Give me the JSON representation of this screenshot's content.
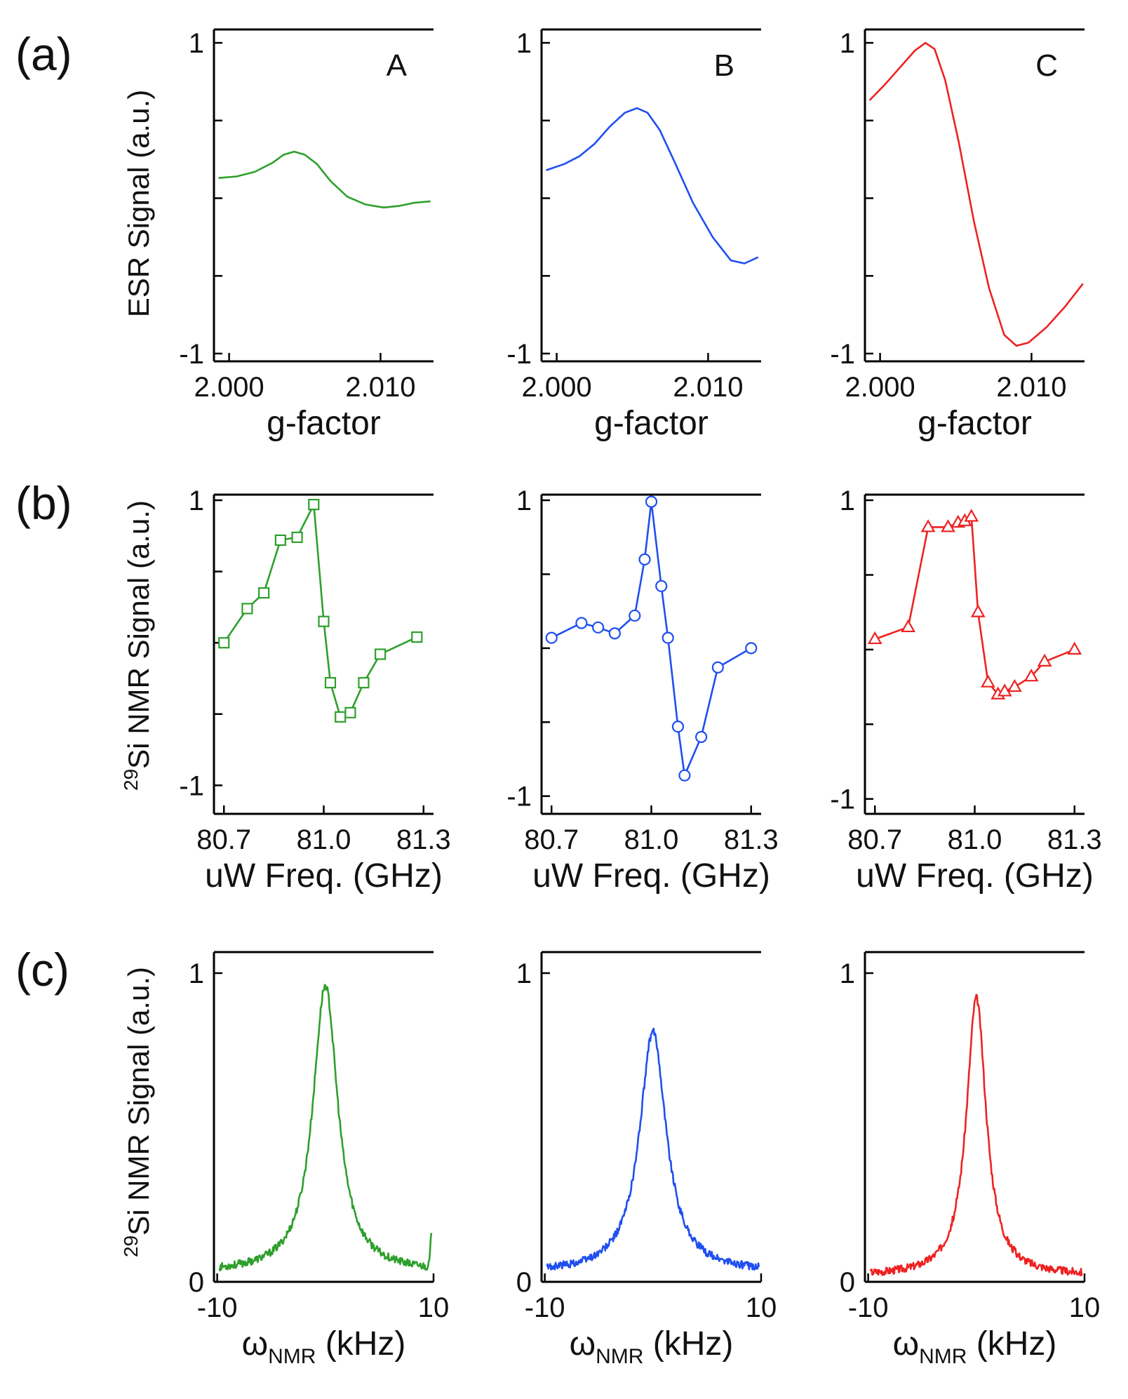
{
  "figure": {
    "row_labels": [
      "(a)",
      "(b)",
      "(c)"
    ],
    "ylabels": [
      {
        "text": "ESR Signal (a.u.)"
      },
      {
        "sup": "29",
        "text": "Si NMR Signal (a.u.)"
      },
      {
        "sup": "29",
        "text": "Si NMR Signal (a.u.)"
      }
    ]
  },
  "colors": {
    "A": "#2ea02c",
    "B": "#1f4ff0",
    "C": "#ee2222"
  },
  "chart_data": [
    {
      "type": "line",
      "row": 0,
      "col": 0,
      "panel_label": "A",
      "color_key": "A",
      "xlabel": "g-factor",
      "ylabel": "ESR Signal (a.u.)",
      "xlim": [
        1.999,
        2.0135
      ],
      "ylim": [
        -1.05,
        1.05
      ],
      "xticks": [
        2.0,
        2.01
      ],
      "xtick_labels": [
        "2.000",
        "2.010"
      ],
      "yticks": [
        -1,
        -0.5,
        0,
        0.5,
        1
      ],
      "ytick_labels": [
        "-1",
        "",
        "",
        "",
        "1"
      ],
      "x": [
        1.9993,
        2.0005,
        2.0017,
        2.0029,
        2.0036,
        2.0043,
        2.005,
        2.0058,
        2.0067,
        2.0078,
        2.009,
        2.0102,
        2.0112,
        2.0122,
        2.0133
      ],
      "y": [
        0.13,
        0.14,
        0.17,
        0.23,
        0.28,
        0.3,
        0.28,
        0.22,
        0.11,
        0.01,
        -0.04,
        -0.06,
        -0.05,
        -0.03,
        -0.02
      ]
    },
    {
      "type": "line",
      "row": 0,
      "col": 1,
      "panel_label": "B",
      "color_key": "B",
      "xlabel": "g-factor",
      "ylabel": "",
      "xlim": [
        1.999,
        2.0135
      ],
      "ylim": [
        -1.05,
        1.05
      ],
      "xticks": [
        2.0,
        2.01
      ],
      "xtick_labels": [
        "2.000",
        "2.010"
      ],
      "yticks": [
        -1,
        -0.5,
        0,
        0.5,
        1
      ],
      "ytick_labels": [
        "-1",
        "",
        "",
        "",
        "1"
      ],
      "x": [
        1.9993,
        2.0005,
        2.0015,
        2.0025,
        2.0035,
        2.0045,
        2.0053,
        2.006,
        2.0068,
        2.0078,
        2.009,
        2.0103,
        2.0115,
        2.0124,
        2.0133
      ],
      "y": [
        0.18,
        0.22,
        0.27,
        0.35,
        0.46,
        0.55,
        0.58,
        0.55,
        0.44,
        0.23,
        -0.03,
        -0.25,
        -0.4,
        -0.42,
        -0.38
      ]
    },
    {
      "type": "line",
      "row": 0,
      "col": 2,
      "panel_label": "C",
      "color_key": "C",
      "xlabel": "g-factor",
      "ylabel": "",
      "xlim": [
        1.999,
        2.0135
      ],
      "ylim": [
        -1.05,
        1.05
      ],
      "xticks": [
        2.0,
        2.01
      ],
      "xtick_labels": [
        "2.000",
        "2.010"
      ],
      "yticks": [
        -1,
        -0.5,
        0,
        0.5,
        1
      ],
      "ytick_labels": [
        "-1",
        "",
        "",
        "",
        "1"
      ],
      "x": [
        1.9993,
        2.0003,
        2.0013,
        2.0023,
        2.003,
        2.0036,
        2.0043,
        2.0052,
        2.0062,
        2.0072,
        2.0082,
        2.009,
        2.0098,
        2.011,
        2.0122,
        2.0134
      ],
      "y": [
        0.63,
        0.73,
        0.84,
        0.95,
        1.0,
        0.96,
        0.76,
        0.36,
        -0.15,
        -0.58,
        -0.88,
        -0.95,
        -0.93,
        -0.83,
        -0.7,
        -0.55
      ]
    },
    {
      "type": "line-markers",
      "row": 1,
      "col": 0,
      "marker": "square",
      "color_key": "A",
      "xlabel": "uW Freq. (GHz)",
      "ylabel": "29Si NMR Signal (a.u.)",
      "xlim": [
        80.67,
        81.33
      ],
      "ylim": [
        -1.2,
        1.0
      ],
      "xticks": [
        80.7,
        81.0,
        81.3
      ],
      "xtick_labels": [
        "80.7",
        "81.0",
        "81.3"
      ],
      "yticks": [
        -1,
        -0.5,
        0,
        0.5,
        1
      ],
      "ytick_labels": [
        "-1",
        "",
        "",
        "",
        "1"
      ],
      "x": [
        80.7,
        80.77,
        80.82,
        80.87,
        80.92,
        80.97,
        81.0,
        81.02,
        81.05,
        81.08,
        81.12,
        81.17,
        81.28
      ],
      "y": [
        0.0,
        0.24,
        0.35,
        0.72,
        0.74,
        0.97,
        0.15,
        -0.28,
        -0.52,
        -0.49,
        -0.28,
        -0.08,
        0.04
      ]
    },
    {
      "type": "line-markers",
      "row": 1,
      "col": 1,
      "marker": "circle",
      "color_key": "B",
      "xlabel": "uW Freq. (GHz)",
      "ylabel": "",
      "xlim": [
        80.67,
        81.33
      ],
      "ylim": [
        -1.12,
        1.0
      ],
      "xticks": [
        80.7,
        81.0,
        81.3
      ],
      "xtick_labels": [
        "80.7",
        "81.0",
        "81.3"
      ],
      "yticks": [
        -1,
        -0.5,
        0,
        0.5,
        1
      ],
      "ytick_labels": [
        "-1",
        "",
        "",
        "",
        "1"
      ],
      "x": [
        80.7,
        80.79,
        80.84,
        80.89,
        80.95,
        80.98,
        81.0,
        81.03,
        81.05,
        81.08,
        81.1,
        81.15,
        81.2,
        81.3
      ],
      "y": [
        0.07,
        0.17,
        0.14,
        0.1,
        0.22,
        0.6,
        0.99,
        0.42,
        0.07,
        -0.53,
        -0.86,
        -0.6,
        -0.13,
        0.0
      ]
    },
    {
      "type": "line-markers",
      "row": 1,
      "col": 2,
      "marker": "triangle",
      "color_key": "C",
      "xlabel": "uW Freq. (GHz)",
      "ylabel": "",
      "xlim": [
        80.67,
        81.33
      ],
      "ylim": [
        -1.1,
        1.0
      ],
      "xticks": [
        80.7,
        81.0,
        81.3
      ],
      "xtick_labels": [
        "80.7",
        "81.0",
        "81.3"
      ],
      "yticks": [
        -1,
        -0.5,
        0,
        0.5,
        1
      ],
      "ytick_labels": [
        "-1",
        "",
        "",
        "",
        "1"
      ],
      "x": [
        80.7,
        80.8,
        80.86,
        80.92,
        80.95,
        80.97,
        80.99,
        81.01,
        81.04,
        81.07,
        81.09,
        81.12,
        81.17,
        81.21,
        81.3
      ],
      "y": [
        0.07,
        0.15,
        0.82,
        0.82,
        0.85,
        0.86,
        0.89,
        0.25,
        -0.22,
        -0.3,
        -0.28,
        -0.25,
        -0.18,
        -0.08,
        0.0
      ]
    },
    {
      "type": "line",
      "row": 2,
      "col": 0,
      "color_key": "A",
      "xlabel": "ω_NMR (kHz)",
      "ylabel": "29Si NMR Signal (a.u.)",
      "xlim": [
        -10.3,
        10.0
      ],
      "ylim": [
        0,
        1.05
      ],
      "xticks": [
        -10,
        10
      ],
      "xtick_labels": [
        "-10",
        "10"
      ],
      "yticks": [
        0,
        1
      ],
      "ytick_labels": [
        "0",
        "1"
      ],
      "peak_center": 0.0,
      "peak_height": 0.96,
      "peak_halfwidth": 1.4,
      "baseline": 0.03,
      "edge_spike": [
        9.8,
        0.1
      ]
    },
    {
      "type": "line",
      "row": 2,
      "col": 1,
      "color_key": "B",
      "xlabel": "ω_NMR (kHz)",
      "ylabel": "",
      "xlim": [
        -10.3,
        10.0
      ],
      "ylim": [
        0,
        1.05
      ],
      "xticks": [
        -10,
        10
      ],
      "xtick_labels": [
        "-10",
        "10"
      ],
      "yticks": [
        0,
        1
      ],
      "ytick_labels": [
        "0",
        "1"
      ],
      "peak_center": 0.0,
      "peak_height": 0.81,
      "peak_halfwidth": 1.5,
      "baseline": 0.03
    },
    {
      "type": "line",
      "row": 2,
      "col": 2,
      "color_key": "C",
      "xlabel": "ω_NMR (kHz)",
      "ylabel": "",
      "xlim": [
        -10.3,
        10.0
      ],
      "ylim": [
        0,
        1.05
      ],
      "xticks": [
        -10,
        10
      ],
      "xtick_labels": [
        "-10",
        "10"
      ],
      "yticks": [
        0,
        1
      ],
      "ytick_labels": [
        "0",
        "1"
      ],
      "peak_center": 0.0,
      "peak_height": 0.92,
      "peak_halfwidth": 1.1,
      "baseline": 0.02
    }
  ]
}
